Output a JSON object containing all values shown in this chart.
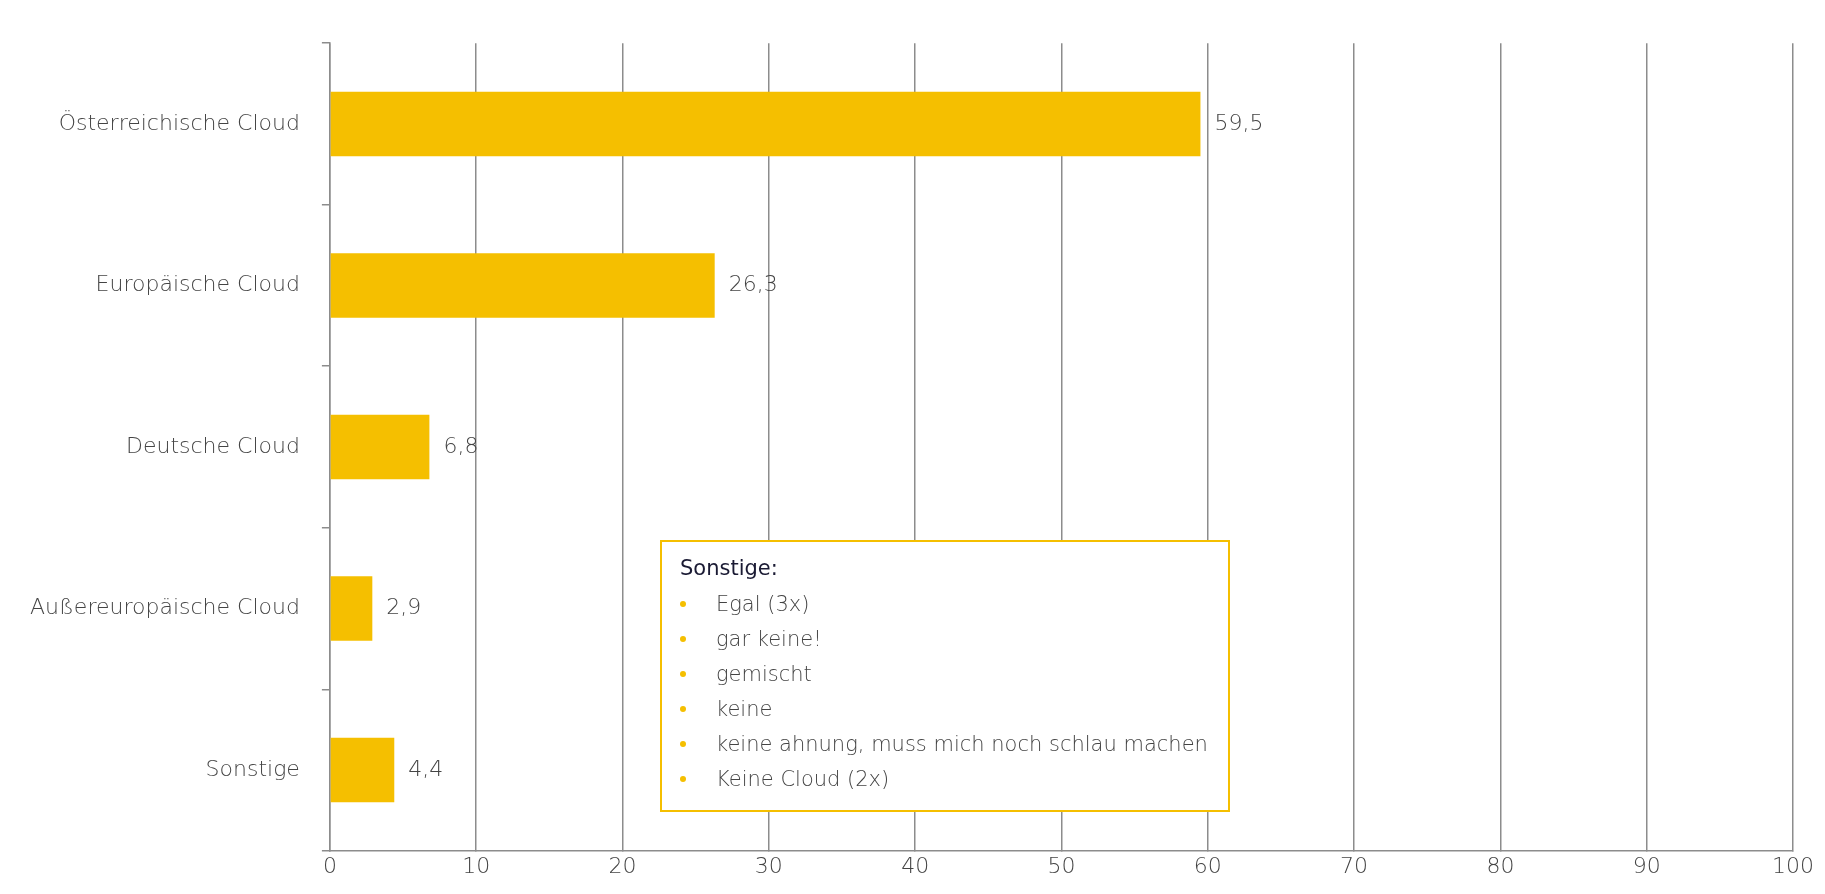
{
  "chart_data": {
    "type": "bar",
    "orientation": "horizontal",
    "categories": [
      "Österreichische Cloud",
      "Europäische Cloud",
      "Deutsche Cloud",
      "Außereuropäische Cloud",
      "Sonstige"
    ],
    "values": [
      59.5,
      26.3,
      6.8,
      2.9,
      4.4
    ],
    "value_labels": [
      "59,5",
      "26,3",
      "6,8",
      "2,9",
      "4,4"
    ],
    "color": "#f5bf00",
    "xlim": [
      0,
      100
    ],
    "xticks": [
      0,
      10,
      20,
      30,
      40,
      50,
      60,
      70,
      80,
      90,
      100
    ],
    "grid": "x",
    "legend": false,
    "annotations": [
      "Sonstige:",
      "Egal (3x)",
      "gar keine!",
      "gemischt",
      "keine",
      "keine ahnung, muss mich noch schlau machen",
      "Keine Cloud (2x)"
    ]
  }
}
